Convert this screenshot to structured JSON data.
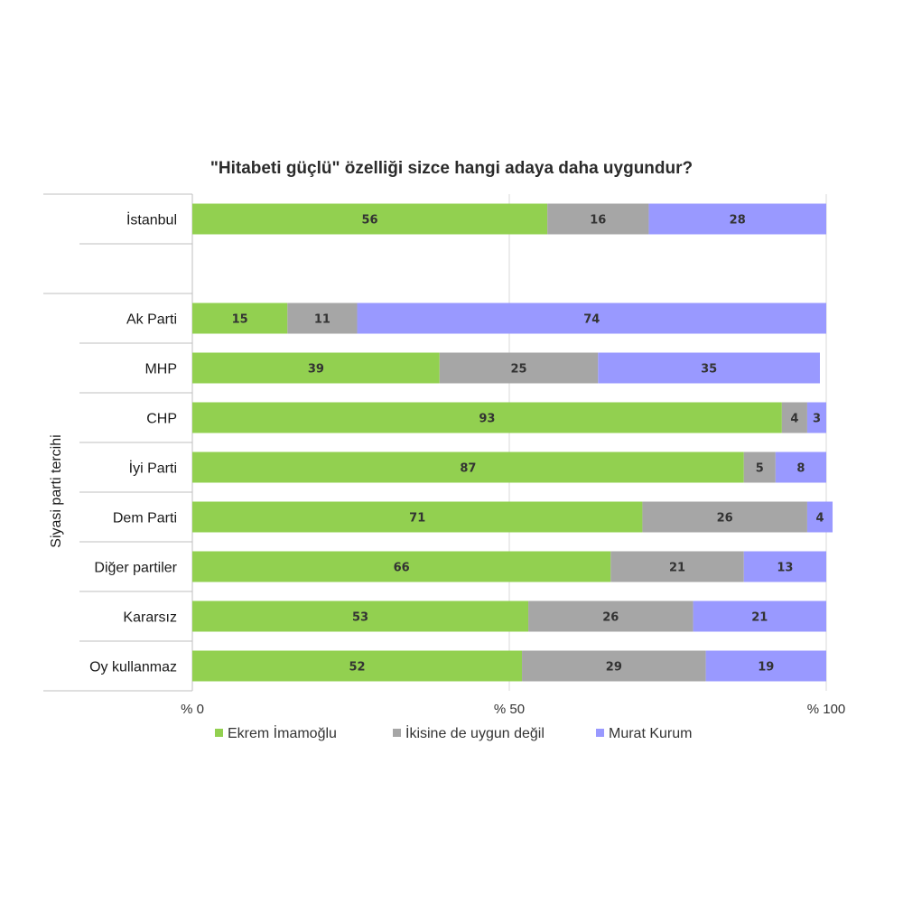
{
  "chart_data": {
    "type": "bar",
    "orientation": "horizontal",
    "stacked": true,
    "title": "\"Hitabeti güçlü\" özelliği sizce hangi adaya daha uygundur?",
    "ylabel": "Siyasi parti tercihi",
    "xlabel": "",
    "xlim": [
      0,
      100
    ],
    "x_ticks": [
      0,
      50,
      100
    ],
    "x_tick_labels": [
      "% 0",
      "% 50",
      "% 100"
    ],
    "grid": true,
    "legend_position": "bottom",
    "categories": [
      "İstanbul",
      "",
      "Ak Parti",
      "MHP",
      "CHP",
      "İyi Parti",
      "Dem Parti",
      "Diğer partiler",
      "Kararsız",
      "Oy kullanmaz"
    ],
    "series": [
      {
        "name": "Ekrem İmamoğlu",
        "color": "#92d050",
        "values": [
          56,
          null,
          15,
          39,
          93,
          87,
          71,
          66,
          53,
          52
        ]
      },
      {
        "name": "İkisine de uygun değil",
        "color": "#a6a6a6",
        "values": [
          16,
          null,
          11,
          25,
          4,
          5,
          26,
          21,
          26,
          29
        ]
      },
      {
        "name": "Murat Kurum",
        "color": "#9999ff",
        "values": [
          28,
          null,
          74,
          35,
          3,
          8,
          4,
          13,
          21,
          19
        ]
      }
    ]
  }
}
